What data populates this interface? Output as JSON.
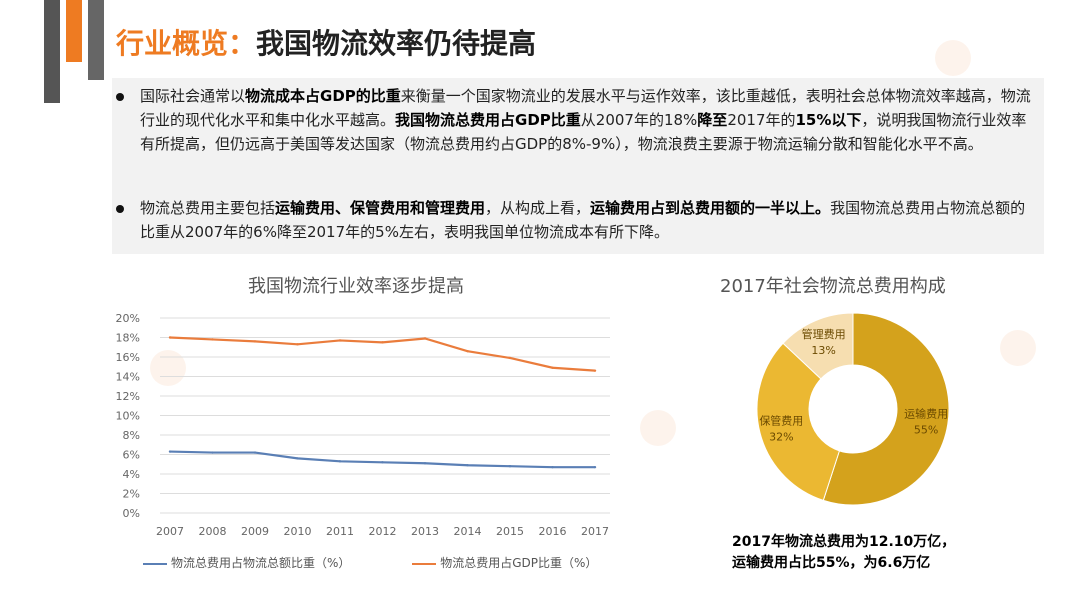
{
  "title": {
    "accent": "行业概览：",
    "main": "我国物流效率仍待提高"
  },
  "bullets": [
    {
      "segments": [
        {
          "t": "国际社会通常以",
          "b": false
        },
        {
          "t": "物流成本占GDP的比重",
          "b": true
        },
        {
          "t": "来衡量一个国家物流业的发展水平与运作效率，该比重越低，表明社会总体物流效率越高，物流行业的现代化水平和集中化水平越高。",
          "b": false
        },
        {
          "t": "我国物流总费用占GDP比重",
          "b": true
        },
        {
          "t": "从2007年的18%",
          "b": false
        },
        {
          "t": "降至",
          "b": true
        },
        {
          "t": "2017年的",
          "b": false
        },
        {
          "t": "15%以下",
          "b": true
        },
        {
          "t": "，说明我国物流行业效率有所提高，但仍远高于美国等发达国家（物流总费用约占GDP的8%-9%），物流浪费主要源于物流运输分散和智能化水平不高。",
          "b": false
        }
      ]
    },
    {
      "segments": [
        {
          "t": "物流总费用主要包括",
          "b": false
        },
        {
          "t": "运输费用、保管费用和管理费用",
          "b": true
        },
        {
          "t": "，从构成上看，",
          "b": false
        },
        {
          "t": "运输费用占到总费用额的一半以上。",
          "b": true
        },
        {
          "t": "我国物流总费用占物流总额的比重从2007年的6%降至2017年的5%左右，表明我国单位物流成本有所下降。",
          "b": false
        }
      ]
    }
  ],
  "summary": {
    "line1": "2017年物流总费用为12.10万亿，",
    "line2": "运输费用占比55%，为6.6万亿"
  },
  "chart_data": [
    {
      "type": "line",
      "title": "我国物流行业效率逐步提高",
      "x": [
        "2007",
        "2008",
        "2009",
        "2010",
        "2011",
        "2012",
        "2013",
        "2014",
        "2015",
        "2016",
        "2017"
      ],
      "ylim": [
        0,
        20
      ],
      "yticks": [
        "0%",
        "2%",
        "4%",
        "6%",
        "8%",
        "10%",
        "12%",
        "14%",
        "16%",
        "18%",
        "20%"
      ],
      "grid": true,
      "legend": "bottom",
      "series": [
        {
          "name": "物流总费用占物流总额比重（%）",
          "color": "#5a7fb5",
          "values": [
            6.3,
            6.2,
            6.2,
            5.6,
            5.3,
            5.2,
            5.1,
            4.9,
            4.8,
            4.7,
            4.7
          ]
        },
        {
          "name": "物流总费用占GDP比重（%）",
          "color": "#ea7c3c",
          "values": [
            18.0,
            17.8,
            17.6,
            17.3,
            17.7,
            17.5,
            17.9,
            16.6,
            15.9,
            14.9,
            14.6
          ]
        }
      ]
    },
    {
      "type": "pie",
      "title": "2017年社会物流总费用构成",
      "slices": [
        {
          "label": "运输费用",
          "value": 55,
          "value_label": "55%",
          "color": "#d4a21c"
        },
        {
          "label": "保管费用",
          "value": 32,
          "value_label": "32%",
          "color": "#ebb832"
        },
        {
          "label": "管理费用",
          "value": 13,
          "value_label": "13%",
          "color": "#f6deb0"
        }
      ]
    }
  ]
}
